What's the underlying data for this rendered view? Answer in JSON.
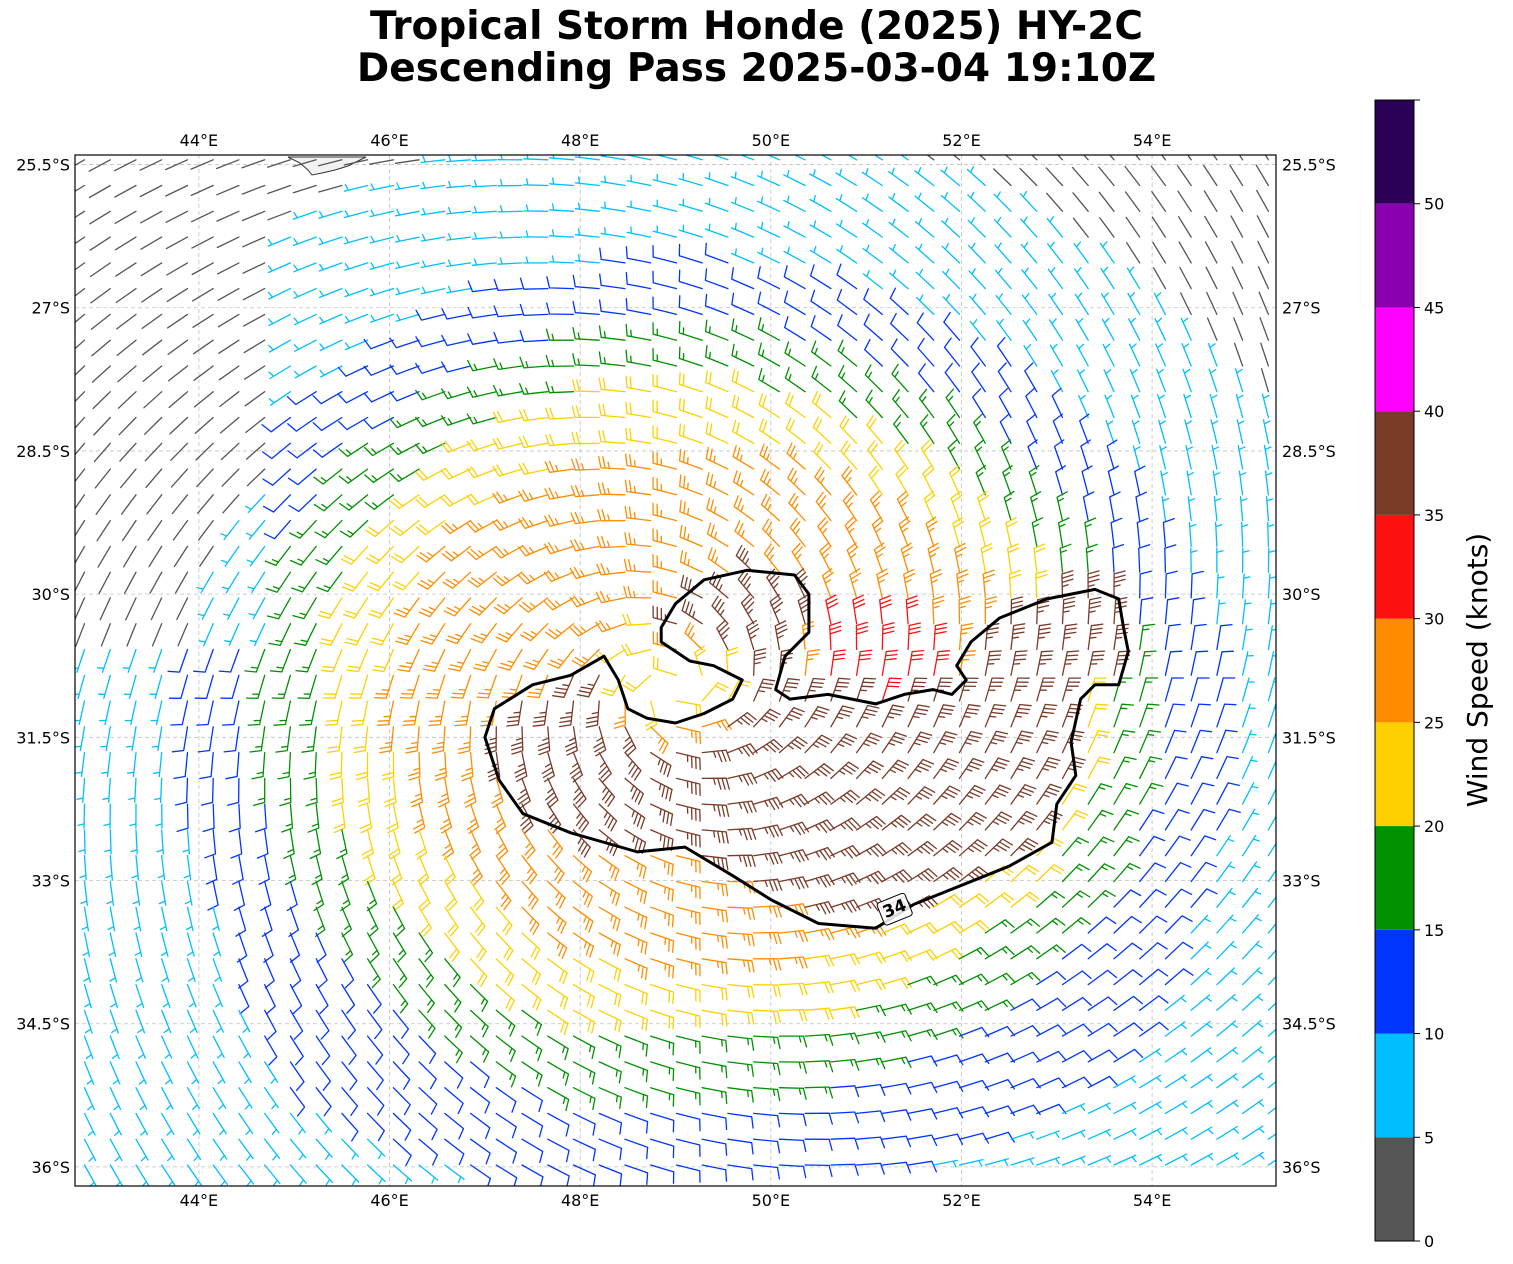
{
  "title": {
    "line1": "Tropical Storm Honde (2025) HY-2C",
    "line2": "Descending Pass 2025-03-04 19:10Z"
  },
  "map": {
    "lon_range": [
      42.7,
      55.3
    ],
    "lat_range": [
      -36.2,
      -25.4
    ],
    "lon_ticks": [
      {
        "value": 44,
        "label": "44°E"
      },
      {
        "value": 46,
        "label": "46°E"
      },
      {
        "value": 48,
        "label": "48°E"
      },
      {
        "value": 50,
        "label": "50°E"
      },
      {
        "value": 52,
        "label": "52°E"
      },
      {
        "value": 54,
        "label": "54°E"
      }
    ],
    "lat_ticks": [
      {
        "value": -25.5,
        "label": "25.5°S"
      },
      {
        "value": -27,
        "label": "27°S"
      },
      {
        "value": -28.5,
        "label": "28.5°S"
      },
      {
        "value": -30,
        "label": "30°S"
      },
      {
        "value": -31.5,
        "label": "31.5°S"
      },
      {
        "value": -33,
        "label": "33°S"
      },
      {
        "value": -34.5,
        "label": "34.5°S"
      },
      {
        "value": -36,
        "label": "36°S"
      }
    ],
    "grid": true,
    "storm_center": {
      "lon": 49.0,
      "lat": -31.0
    },
    "contour_34kt": {
      "label": "34",
      "label_position": {
        "lon": 51.3,
        "lat": -33.3
      },
      "outline": [
        [
          47.1,
          -31.2
        ],
        [
          47.5,
          -30.95
        ],
        [
          47.9,
          -30.85
        ],
        [
          48.25,
          -30.65
        ],
        [
          48.4,
          -30.9
        ],
        [
          48.5,
          -31.2
        ],
        [
          48.7,
          -31.3
        ],
        [
          49.0,
          -31.35
        ],
        [
          49.3,
          -31.25
        ],
        [
          49.6,
          -31.1
        ],
        [
          49.7,
          -30.9
        ],
        [
          49.4,
          -30.75
        ],
        [
          49.15,
          -30.7
        ],
        [
          48.85,
          -30.5
        ],
        [
          48.85,
          -30.35
        ],
        [
          49.0,
          -30.1
        ],
        [
          49.3,
          -29.85
        ],
        [
          49.75,
          -29.75
        ],
        [
          50.25,
          -29.8
        ],
        [
          50.4,
          -30.0
        ],
        [
          50.4,
          -30.4
        ],
        [
          50.15,
          -30.65
        ],
        [
          50.05,
          -31.0
        ],
        [
          50.2,
          -31.1
        ],
        [
          50.6,
          -31.05
        ],
        [
          51.1,
          -31.15
        ],
        [
          51.4,
          -31.05
        ],
        [
          51.7,
          -31.0
        ],
        [
          51.9,
          -31.05
        ],
        [
          52.05,
          -30.9
        ],
        [
          51.95,
          -30.75
        ],
        [
          52.1,
          -30.5
        ],
        [
          52.4,
          -30.25
        ],
        [
          52.9,
          -30.05
        ],
        [
          53.4,
          -29.95
        ],
        [
          53.65,
          -30.05
        ],
        [
          53.7,
          -30.35
        ],
        [
          53.75,
          -30.6
        ],
        [
          53.65,
          -30.95
        ],
        [
          53.4,
          -30.95
        ],
        [
          53.25,
          -31.1
        ],
        [
          53.15,
          -31.55
        ],
        [
          53.2,
          -31.9
        ],
        [
          53.0,
          -32.2
        ],
        [
          52.95,
          -32.6
        ],
        [
          52.5,
          -32.85
        ],
        [
          52.0,
          -33.05
        ],
        [
          51.5,
          -33.25
        ],
        [
          51.1,
          -33.5
        ],
        [
          50.5,
          -33.45
        ],
        [
          50.0,
          -33.2
        ],
        [
          49.6,
          -32.95
        ],
        [
          49.1,
          -32.65
        ],
        [
          48.6,
          -32.7
        ],
        [
          47.9,
          -32.5
        ],
        [
          47.4,
          -32.3
        ],
        [
          47.15,
          -31.95
        ],
        [
          47.0,
          -31.5
        ],
        [
          47.1,
          -31.2
        ]
      ]
    }
  },
  "colorbar": {
    "label": "Wind Speed (knots)",
    "bounds": [
      0,
      5,
      10,
      15,
      20,
      25,
      30,
      35,
      40,
      45,
      50,
      55
    ],
    "tick_labels": [
      "0",
      "5",
      "10",
      "15",
      "20",
      "25",
      "30",
      "35",
      "40",
      "45",
      "50"
    ],
    "colors": [
      "#555555",
      "#00bfff",
      "#0035ff",
      "#009100",
      "#ffd000",
      "#ff8c00",
      "#ff1010",
      "#7a3a28",
      "#ff00ff",
      "#8a00b0",
      "#2b0057"
    ]
  },
  "colors": {
    "land": "#f2f2f2",
    "contour": "#000000",
    "grid": "#c0c0c0"
  }
}
